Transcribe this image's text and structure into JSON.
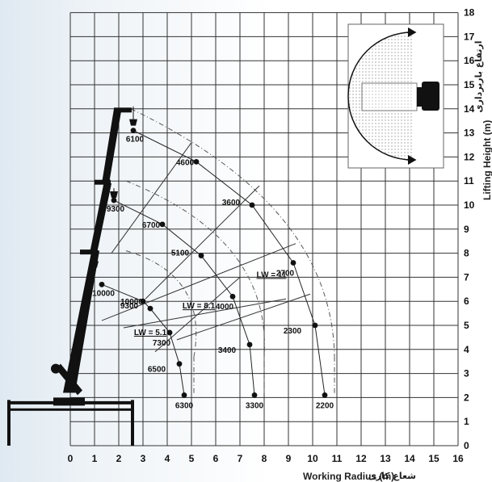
{
  "chart_data": {
    "type": "scatter",
    "xlabel": "Working Radius (m)",
    "xlabel_fa": "شعاع کاری",
    "ylabel": "Lifting Height (m)",
    "ylabel_fa": "ارتفاع باربرداری",
    "xlim": [
      0,
      16
    ],
    "ylim": [
      0,
      18
    ],
    "x_ticks": [
      "0",
      "1",
      "2",
      "3",
      "4",
      "5",
      "6",
      "7",
      "8",
      "9",
      "10",
      "11",
      "12",
      "13",
      "14",
      "15",
      "16"
    ],
    "y_ticks": [
      "0",
      "1",
      "2",
      "3",
      "4",
      "5",
      "6",
      "7",
      "8",
      "9",
      "10",
      "11",
      "12",
      "13",
      "14",
      "15",
      "16",
      "17",
      "18"
    ],
    "grid": true,
    "boom_configs": [
      {
        "name": "LW = 5.1",
        "points": [
          {
            "x": 1.3,
            "y": 6.7,
            "load": "10000"
          },
          {
            "x": 3.0,
            "y": 6.0,
            "load": "10000"
          },
          {
            "x": 3.3,
            "y": 5.7,
            "load": "9300"
          },
          {
            "x": 4.1,
            "y": 4.7,
            "load": "7300"
          },
          {
            "x": 4.5,
            "y": 3.4,
            "load": "6500"
          },
          {
            "x": 4.7,
            "y": 2.1,
            "load": "6300"
          }
        ]
      },
      {
        "name": "LW = 8.1",
        "points": [
          {
            "x": 1.8,
            "y": 10.2,
            "load": "9300"
          },
          {
            "x": 3.8,
            "y": 9.2,
            "load": "6700"
          },
          {
            "x": 5.4,
            "y": 7.9,
            "load": "5100"
          },
          {
            "x": 6.7,
            "y": 6.2,
            "load": "4000"
          },
          {
            "x": 7.4,
            "y": 4.2,
            "load": "3400"
          },
          {
            "x": 7.6,
            "y": 2.1,
            "load": "3300"
          }
        ]
      },
      {
        "name": "LW = 11",
        "points": [
          {
            "x": 2.6,
            "y": 13.1,
            "load": "6100"
          },
          {
            "x": 5.2,
            "y": 11.8,
            "load": "4600"
          },
          {
            "x": 7.5,
            "y": 10.0,
            "load": "3600"
          },
          {
            "x": 9.2,
            "y": 7.6,
            "load": "2700"
          },
          {
            "x": 10.1,
            "y": 5.0,
            "load": "2300"
          },
          {
            "x": 10.5,
            "y": 2.1,
            "load": "2200"
          }
        ]
      }
    ]
  },
  "colors": {
    "grid": "#333333",
    "crane": "#111111",
    "curve": "#222222",
    "envelope": "#555555",
    "inset_dots": "#9a9a9a",
    "truck": "#111111"
  }
}
